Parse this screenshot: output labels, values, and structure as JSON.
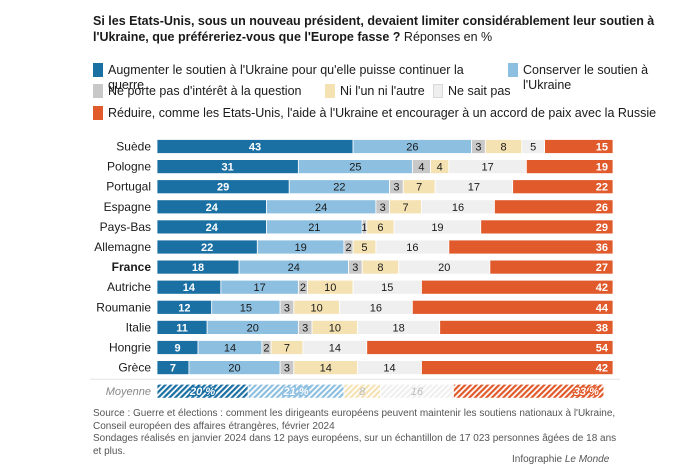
{
  "title": {
    "question": "Si les Etats-Unis, sous un nouveau président, devaient limiter considérablement leur soutien à l'Ukraine, que préféreriez-vous que l'Europe fasse ?",
    "unit": "Réponses en %"
  },
  "legend": [
    {
      "key": "augmenter",
      "label": "Augmenter le soutien à l'Ukraine pour qu'elle puisse continuer la guerre",
      "color": "#1a6fa3"
    },
    {
      "key": "conserver",
      "label": "Conserver le soutien à l'Ukraine",
      "color": "#8dbfe0"
    },
    {
      "key": "ne_porte_pas",
      "label": "Ne porte pas d'intérêt à la question",
      "color": "#c8c8c8"
    },
    {
      "key": "ni_lun",
      "label": "Ni l'un ni l'autre",
      "color": "#f5e2b3"
    },
    {
      "key": "ne_sait_pas",
      "label": "Ne sait pas",
      "color": "#efefef"
    },
    {
      "key": "reduire",
      "label": "Réduire, comme les Etats-Unis, l'aide à l'Ukraine et encourager à un accord de paix avec la Russie",
      "color": "#e05a2b"
    }
  ],
  "chart_data": {
    "type": "bar",
    "orientation": "horizontal",
    "stacked": true,
    "unit": "%",
    "categories": [
      "Suède",
      "Pologne",
      "Portugal",
      "Espagne",
      "Pays-Bas",
      "Allemagne",
      "France",
      "Autriche",
      "Roumanie",
      "Italie",
      "Hongrie",
      "Grèce"
    ],
    "highlight_category": "France",
    "series": [
      {
        "name": "Augmenter le soutien à l'Ukraine pour qu'elle puisse continuer la guerre",
        "values": [
          43,
          31,
          29,
          24,
          24,
          22,
          18,
          14,
          12,
          11,
          9,
          7
        ]
      },
      {
        "name": "Conserver le soutien à l'Ukraine",
        "values": [
          26,
          25,
          22,
          24,
          21,
          19,
          24,
          17,
          15,
          20,
          14,
          20
        ]
      },
      {
        "name": "Ne porte pas d'intérêt à la question",
        "values": [
          3,
          4,
          3,
          3,
          1,
          2,
          3,
          2,
          3,
          3,
          2,
          3
        ]
      },
      {
        "name": "Ni l'un ni l'autre",
        "values": [
          8,
          4,
          7,
          7,
          6,
          5,
          8,
          10,
          10,
          10,
          7,
          14
        ]
      },
      {
        "name": "Ne sait pas",
        "values": [
          5,
          17,
          17,
          16,
          19,
          16,
          20,
          15,
          16,
          18,
          14,
          14
        ]
      },
      {
        "name": "Réduire, comme les Etats-Unis, l'aide à l'Ukraine et encourager à un accord de paix avec la Russie",
        "values": [
          15,
          19,
          22,
          26,
          29,
          36,
          27,
          42,
          44,
          38,
          54,
          42
        ]
      }
    ],
    "average": {
      "label": "Moyenne",
      "values": [
        20,
        21,
        0,
        8,
        16,
        33
      ],
      "display": [
        "20 %",
        "21 %",
        "",
        "8",
        "16",
        "33 %"
      ]
    }
  },
  "source": {
    "line1": "Source : Guerre et élections : comment les dirigeants européens peuvent maintenir les soutiens nationaux à l'Ukraine, Conseil européen des affaires étrangères, février 2024",
    "line2": "Sondages réalisés en janvier 2024 dans 12 pays européens, sur un échantillon de 17 023 personnes âgées de 18 ans et plus."
  },
  "credit": {
    "prefix": "Infographie",
    "brand": "Le Monde"
  }
}
